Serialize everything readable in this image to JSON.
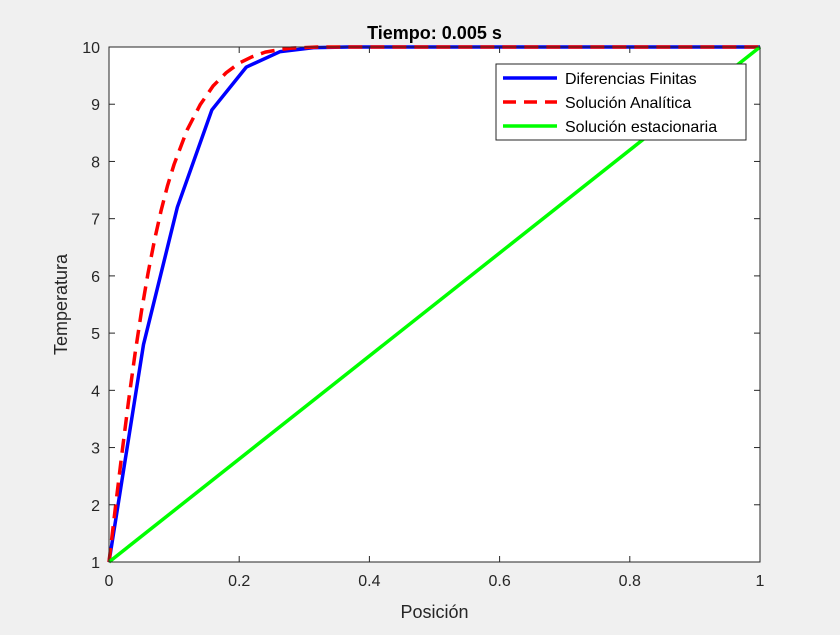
{
  "chart_data": {
    "type": "line",
    "title": "Tiempo: 0.005 s",
    "xlabel": "Posición",
    "ylabel": "Temperatura",
    "xlim": [
      0,
      1
    ],
    "ylim": [
      1,
      10
    ],
    "xticks": [
      0,
      0.2,
      0.4,
      0.6,
      0.8,
      1
    ],
    "xtick_labels": [
      "0",
      "0.2",
      "0.4",
      "0.6",
      "0.8",
      "1"
    ],
    "yticks": [
      1,
      2,
      3,
      4,
      5,
      6,
      7,
      8,
      9,
      10
    ],
    "ytick_labels": [
      "1",
      "2",
      "3",
      "4",
      "5",
      "6",
      "7",
      "8",
      "9",
      "10"
    ],
    "grid": false,
    "legend_position": "top-right",
    "series": [
      {
        "name": "Diferencias Finitas",
        "color": "#0000ff",
        "style": "solid",
        "x": [
          0,
          0.053,
          0.105,
          0.158,
          0.211,
          0.263,
          0.316,
          0.368,
          0.421,
          0.474,
          0.526,
          0.579,
          0.632,
          0.684,
          0.737,
          0.789,
          0.842,
          0.895,
          0.947,
          1.0
        ],
        "y": [
          1.0,
          4.8,
          7.2,
          8.9,
          9.65,
          9.92,
          9.99,
          10,
          10,
          10,
          10,
          10,
          10,
          10,
          10,
          10,
          10,
          10,
          10,
          10
        ]
      },
      {
        "name": "Solución Analítica",
        "color": "#ff0000",
        "style": "dashed",
        "x": [
          0,
          0.01,
          0.02,
          0.03,
          0.04,
          0.05,
          0.06,
          0.07,
          0.08,
          0.09,
          0.1,
          0.12,
          0.14,
          0.16,
          0.18,
          0.2,
          0.22,
          0.24,
          0.26,
          0.28,
          0.3,
          0.32,
          0.35,
          0.4,
          0.5,
          0.6,
          0.7,
          0.8,
          0.9,
          1.0
        ],
        "y": [
          1.0,
          1.97,
          2.91,
          3.81,
          4.64,
          5.39,
          6.05,
          6.63,
          7.14,
          7.58,
          7.95,
          8.55,
          8.99,
          9.32,
          9.55,
          9.72,
          9.83,
          9.91,
          9.95,
          9.98,
          9.99,
          10,
          10,
          10,
          10,
          10,
          10,
          10,
          10,
          10
        ]
      },
      {
        "name": "Solución estacionaria",
        "color": "#00ff00",
        "style": "solid",
        "x": [
          0,
          1
        ],
        "y": [
          1,
          10
        ]
      }
    ]
  }
}
